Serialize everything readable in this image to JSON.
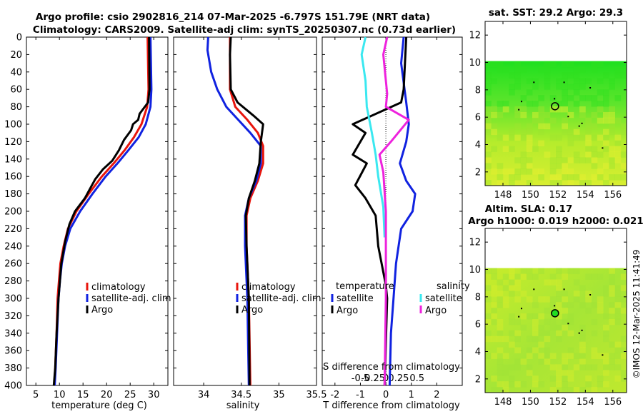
{
  "title": {
    "line1": "Argo profile: csio 2902816_214 07-Mar-2025 -6.797S 151.79E (NRT data)",
    "line2": "Climatology: CARS2009. Satellite-adj clim: synTS_20250307.nc (0.73d earlier)"
  },
  "footer_stamp": "©IMOS 12-Mar-2025 11:41:49",
  "colors": {
    "climatology": "#e8150c",
    "satellite": "#1022e0",
    "argo": "#000000",
    "sat_salinity": "#3ae8f0",
    "argo_salinity": "#ee22dd"
  },
  "chart_data": [
    {
      "id": "temperature",
      "type": "line",
      "xlabel": "temperature (deg C)",
      "ylabel": "",
      "xlim": [
        3,
        33
      ],
      "ylim": [
        400,
        0
      ],
      "xticks": [
        "5",
        "10",
        "15",
        "20",
        "25",
        "30"
      ],
      "xtick_values": [
        5,
        10,
        15,
        20,
        25,
        30
      ],
      "yticks": [
        "0",
        "20",
        "40",
        "60",
        "80",
        "100",
        "120",
        "140",
        "160",
        "180",
        "200",
        "220",
        "240",
        "260",
        "280",
        "300",
        "320",
        "340",
        "360",
        "380",
        "400"
      ],
      "ytick_values": [
        0,
        20,
        40,
        60,
        80,
        100,
        120,
        140,
        160,
        180,
        200,
        220,
        240,
        260,
        280,
        300,
        320,
        340,
        360,
        380,
        400
      ],
      "legend": [
        "climatology",
        "satellite-adj. clim",
        "Argo"
      ],
      "series": [
        {
          "name": "climatology",
          "color": "#e8150c",
          "points": [
            [
              28.7,
              0
            ],
            [
              28.9,
              60
            ],
            [
              28.6,
              80
            ],
            [
              27.4,
              100
            ],
            [
              25.8,
              115
            ],
            [
              23.8,
              130
            ],
            [
              21.5,
              145
            ],
            [
              19,
              160
            ],
            [
              16.2,
              180
            ],
            [
              13.6,
              200
            ],
            [
              11.8,
              220
            ],
            [
              10.9,
              240
            ],
            [
              10.2,
              260
            ],
            [
              9.9,
              280
            ],
            [
              9.6,
              300
            ],
            [
              9.4,
              340
            ],
            [
              9.1,
              380
            ],
            [
              8.9,
              400
            ]
          ]
        },
        {
          "name": "satellite-adj. clim",
          "color": "#1022e0",
          "points": [
            [
              29.3,
              0
            ],
            [
              29.5,
              60
            ],
            [
              29.3,
              80
            ],
            [
              28.3,
              100
            ],
            [
              26.8,
              115
            ],
            [
              24.6,
              130
            ],
            [
              22.3,
              145
            ],
            [
              19.8,
              160
            ],
            [
              17,
              180
            ],
            [
              14.4,
              200
            ],
            [
              12.3,
              220
            ],
            [
              11.2,
              240
            ],
            [
              10.5,
              260
            ],
            [
              10.1,
              280
            ],
            [
              9.8,
              300
            ],
            [
              9.5,
              340
            ],
            [
              9.2,
              380
            ],
            [
              9,
              400
            ]
          ]
        },
        {
          "name": "Argo",
          "color": "#000000",
          "points": [
            [
              29,
              0
            ],
            [
              29.1,
              60
            ],
            [
              28.8,
              75
            ],
            [
              27,
              88
            ],
            [
              26.7,
              95
            ],
            [
              25.6,
              100
            ],
            [
              25.2,
              107
            ],
            [
              23.7,
              118
            ],
            [
              22.6,
              130
            ],
            [
              21.2,
              142
            ],
            [
              19.2,
              152
            ],
            [
              17.6,
              163
            ],
            [
              15.4,
              185
            ],
            [
              13.3,
              200
            ],
            [
              12.1,
              215
            ],
            [
              11.2,
              235
            ],
            [
              10.4,
              260
            ],
            [
              9.8,
              300
            ],
            [
              9.4,
              340
            ],
            [
              9.1,
              380
            ],
            [
              8.8,
              400
            ]
          ]
        }
      ]
    },
    {
      "id": "salinity",
      "type": "line",
      "xlabel": "salinity",
      "xlim": [
        33.6,
        35.5
      ],
      "ylim": [
        400,
        0
      ],
      "xticks": [
        "34",
        "34.5",
        "35",
        "35.5"
      ],
      "xtick_values": [
        34,
        34.5,
        35,
        35.5
      ],
      "legend": [
        "climatology",
        "satellite-adj. clim",
        "Argo"
      ],
      "series": [
        {
          "name": "climatology",
          "color": "#e8150c",
          "points": [
            [
              34.35,
              0
            ],
            [
              34.35,
              60
            ],
            [
              34.42,
              80
            ],
            [
              34.58,
              95
            ],
            [
              34.72,
              110
            ],
            [
              34.79,
              125
            ],
            [
              34.79,
              145
            ],
            [
              34.72,
              165
            ],
            [
              34.62,
              185
            ],
            [
              34.57,
              205
            ],
            [
              34.57,
              240
            ],
            [
              34.6,
              300
            ],
            [
              34.62,
              400
            ]
          ]
        },
        {
          "name": "satellite-adj. clim",
          "color": "#1022e0",
          "points": [
            [
              34.06,
              0
            ],
            [
              34.05,
              15
            ],
            [
              34.1,
              40
            ],
            [
              34.18,
              60
            ],
            [
              34.3,
              80
            ],
            [
              34.46,
              95
            ],
            [
              34.62,
              110
            ],
            [
              34.76,
              125
            ],
            [
              34.76,
              145
            ],
            [
              34.7,
              165
            ],
            [
              34.6,
              185
            ],
            [
              34.55,
              205
            ],
            [
              34.55,
              240
            ],
            [
              34.58,
              300
            ],
            [
              34.6,
              400
            ]
          ]
        },
        {
          "name": "Argo",
          "color": "#000000",
          "points": [
            [
              34.36,
              0
            ],
            [
              34.35,
              20
            ],
            [
              34.36,
              60
            ],
            [
              34.45,
              75
            ],
            [
              34.66,
              90
            ],
            [
              34.79,
              100
            ],
            [
              34.76,
              120
            ],
            [
              34.74,
              145
            ],
            [
              34.68,
              165
            ],
            [
              34.6,
              185
            ],
            [
              34.56,
              205
            ],
            [
              34.57,
              240
            ],
            [
              34.6,
              300
            ],
            [
              34.61,
              400
            ]
          ]
        }
      ]
    },
    {
      "id": "difference",
      "type": "line",
      "xlabel": "T difference from climatology",
      "xlim": [
        -2.5,
        3
      ],
      "ylim": [
        400,
        0
      ],
      "xticks": [
        "-2",
        "-1",
        "0",
        "1",
        "2"
      ],
      "xtick_values": [
        -2,
        -1,
        0,
        1,
        2
      ],
      "top_axis_label": "S difference from climatology",
      "top_ticks": [
        "-0.5",
        "-0.25",
        "0",
        "0.25",
        "0.5"
      ],
      "top_tick_values": [
        -0.5,
        -0.25,
        0,
        0.25,
        0.5
      ],
      "legend_temperature_header": "temperature",
      "legend_salinity_header": "salinity",
      "legend_temperature": [
        "satellite",
        "Argo"
      ],
      "legend_salinity": [
        "satellite",
        "Argo"
      ],
      "series": [
        {
          "name": "T satellite",
          "color": "#1022e0",
          "points": [
            [
              0.7,
              0
            ],
            [
              0.6,
              30
            ],
            [
              0.8,
              75
            ],
            [
              0.9,
              100
            ],
            [
              0.8,
              120
            ],
            [
              0.55,
              145
            ],
            [
              0.8,
              165
            ],
            [
              1.15,
              180
            ],
            [
              1.05,
              200
            ],
            [
              0.6,
              220
            ],
            [
              0.4,
              260
            ],
            [
              0.3,
              300
            ],
            [
              0.2,
              340
            ],
            [
              0.15,
              400
            ]
          ]
        },
        {
          "name": "T Argo",
          "color": "#000000",
          "points": [
            [
              0.8,
              0
            ],
            [
              0.7,
              60
            ],
            [
              0.6,
              75
            ],
            [
              -1.3,
              100
            ],
            [
              -0.8,
              110
            ],
            [
              -1.3,
              135
            ],
            [
              -0.75,
              145
            ],
            [
              -1.2,
              170
            ],
            [
              -0.8,
              185
            ],
            [
              -0.4,
              205
            ],
            [
              -0.3,
              240
            ],
            [
              0,
              285
            ],
            [
              0.05,
              300
            ],
            [
              -0.05,
              400
            ]
          ]
        },
        {
          "name": "S satellite",
          "color": "#3ae8f0",
          "points": [
            [
              -0.8,
              0
            ],
            [
              -0.95,
              20
            ],
            [
              -0.8,
              50
            ],
            [
              -0.75,
              80
            ],
            [
              -0.55,
              110
            ],
            [
              -0.4,
              135
            ],
            [
              -0.3,
              160
            ],
            [
              -0.1,
              195
            ],
            [
              -0.05,
              230
            ]
          ]
        },
        {
          "name": "S Argo",
          "color": "#ee22dd",
          "points": [
            [
              0.05,
              0
            ],
            [
              -0.1,
              20
            ],
            [
              0.05,
              65
            ],
            [
              0,
              80
            ],
            [
              0.9,
              95
            ],
            [
              0.2,
              120
            ],
            [
              -0.25,
              135
            ],
            [
              -0.1,
              155
            ],
            [
              0,
              200
            ],
            [
              0,
              260
            ],
            [
              0,
              300
            ],
            [
              -0.05,
              400
            ]
          ]
        }
      ]
    }
  ],
  "maps": [
    {
      "id": "sst-map",
      "title": "sat. SST: 29.2 Argo: 29.3",
      "xticks": [
        "148",
        "150",
        "152",
        "154",
        "156"
      ],
      "xtick_values": [
        148,
        150,
        152,
        154,
        156
      ],
      "yticks": [
        "2",
        "4",
        "6",
        "8",
        "10",
        "12"
      ],
      "ytick_values": [
        2,
        4,
        6,
        8,
        10,
        12
      ],
      "xlim": [
        146.7,
        157
      ],
      "ylim": [
        1,
        13
      ],
      "data_top": 10.1,
      "float_lon": 151.79,
      "float_lat": 6.8
    },
    {
      "id": "sla-map",
      "title1": "Altim. SLA: 0.17",
      "title2": "Argo h1000: 0.019 h2000: 0.021",
      "xticks": [
        "148",
        "150",
        "152",
        "154",
        "156"
      ],
      "xtick_values": [
        148,
        150,
        152,
        154,
        156
      ],
      "yticks": [
        "2",
        "4",
        "6",
        "8",
        "10",
        "12"
      ],
      "ytick_values": [
        2,
        4,
        6,
        8,
        10,
        12
      ],
      "xlim": [
        146.7,
        157
      ],
      "ylim": [
        1,
        13
      ],
      "data_top": 10.1,
      "float_lon": 151.79,
      "float_lat": 6.8
    }
  ]
}
